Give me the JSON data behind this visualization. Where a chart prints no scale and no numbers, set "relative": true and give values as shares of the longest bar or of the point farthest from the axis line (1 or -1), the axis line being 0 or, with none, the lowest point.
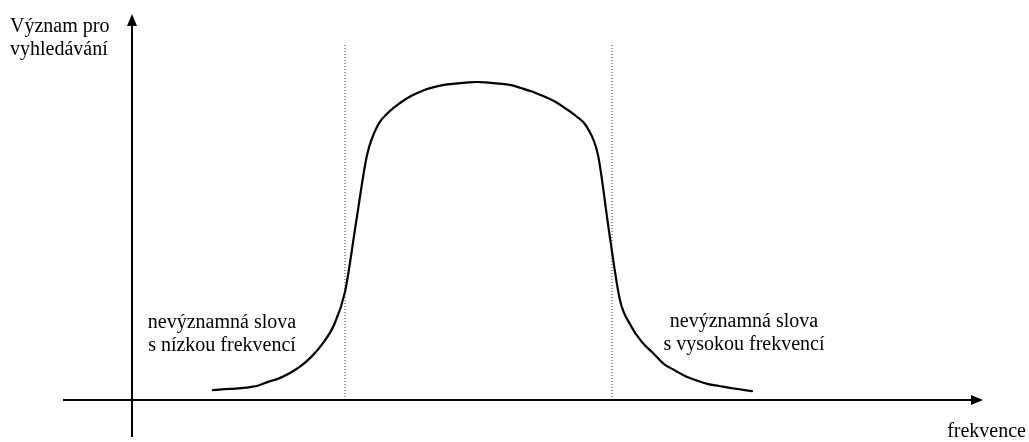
{
  "chart_data": {
    "type": "line",
    "relative": true,
    "categories": [
      null,
      null,
      null,
      null,
      null,
      null,
      null,
      null,
      null,
      null,
      null,
      null,
      null,
      null,
      null,
      null,
      null,
      null,
      null,
      null,
      null,
      null,
      null,
      null,
      null,
      null,
      null,
      null,
      null,
      null,
      null,
      null,
      null,
      null,
      null,
      null,
      null,
      null,
      null,
      null,
      null,
      null,
      null,
      null,
      null,
      null,
      null,
      null,
      null,
      null
    ],
    "series": [
      {
        "color": "#000000",
        "values": [
          0.031,
          0.034,
          0.036,
          0.039,
          0.044,
          0.057,
          0.068,
          0.085,
          0.107,
          0.138,
          0.179,
          0.236,
          0.34,
          0.557,
          0.77,
          0.865,
          0.906,
          0.934,
          0.956,
          0.972,
          0.983,
          0.991,
          0.995,
          0.998,
          1,
          0.998,
          0.995,
          0.991,
          0.981,
          0.97,
          0.956,
          0.94,
          0.918,
          0.893,
          0.858,
          0.77,
          0.531,
          0.314,
          0.233,
          0.182,
          0.148,
          0.113,
          0.093,
          0.074,
          0.061,
          0.05,
          0.044,
          0.038,
          0.033,
          0.028
        ]
      }
    ],
    "annotations": [
      "Význam pro\nvyhledávání",
      "nevýznamná slova\ns nízkou frekvencí",
      "nevýznamná slova\ns vysokou frekvencí",
      "frekvence"
    ]
  }
}
